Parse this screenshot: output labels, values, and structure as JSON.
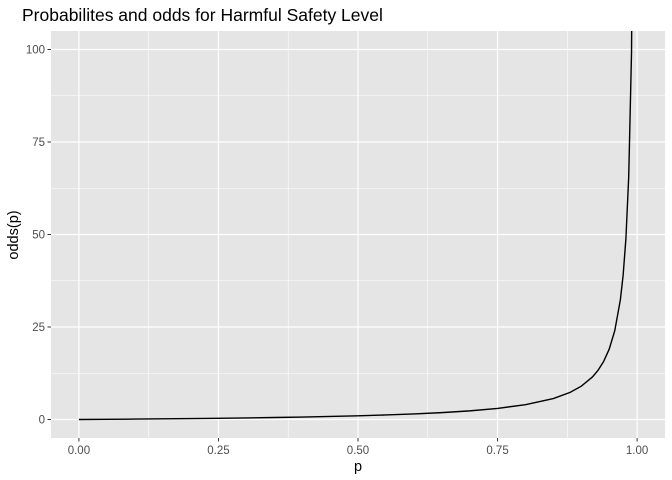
{
  "chart_data": {
    "type": "line",
    "title": "Probabilites and odds for Harmful Safety Level",
    "xlabel": "p",
    "ylabel": "odds(p)",
    "xlim": [
      -0.05,
      1.05
    ],
    "ylim": [
      -5,
      105
    ],
    "x_ticks": [
      0,
      0.25,
      0.5,
      0.75,
      1
    ],
    "x_tick_labels": [
      "0.00",
      "0.25",
      "0.50",
      "0.75",
      "1.00"
    ],
    "y_ticks": [
      0,
      25,
      50,
      75,
      100
    ],
    "y_tick_labels": [
      "0",
      "25",
      "50",
      "75",
      "100"
    ],
    "x_minor": [
      0.125,
      0.375,
      0.625,
      0.875
    ],
    "y_minor": [
      12.5,
      37.5,
      62.5,
      87.5
    ],
    "grid": true,
    "panel_color": "#e5e5e5",
    "grid_color": "#ffffff",
    "line_color": "#000000",
    "series": [
      {
        "x": [
          0,
          0.05,
          0.1,
          0.15,
          0.2,
          0.25,
          0.3,
          0.35,
          0.4,
          0.45,
          0.5,
          0.55,
          0.6,
          0.65,
          0.7,
          0.75,
          0.8,
          0.85,
          0.88,
          0.9,
          0.92,
          0.93,
          0.94,
          0.95,
          0.96,
          0.97,
          0.975,
          0.98,
          0.985,
          0.99,
          0.995
        ],
        "values": [
          0,
          0.053,
          0.111,
          0.176,
          0.25,
          0.333,
          0.429,
          0.538,
          0.667,
          0.818,
          1,
          1.222,
          1.5,
          1.857,
          2.333,
          3,
          4,
          5.667,
          7.333,
          9,
          11.5,
          13.286,
          15.667,
          19,
          24,
          32.333,
          39,
          49,
          65.667,
          99,
          199
        ]
      }
    ]
  }
}
